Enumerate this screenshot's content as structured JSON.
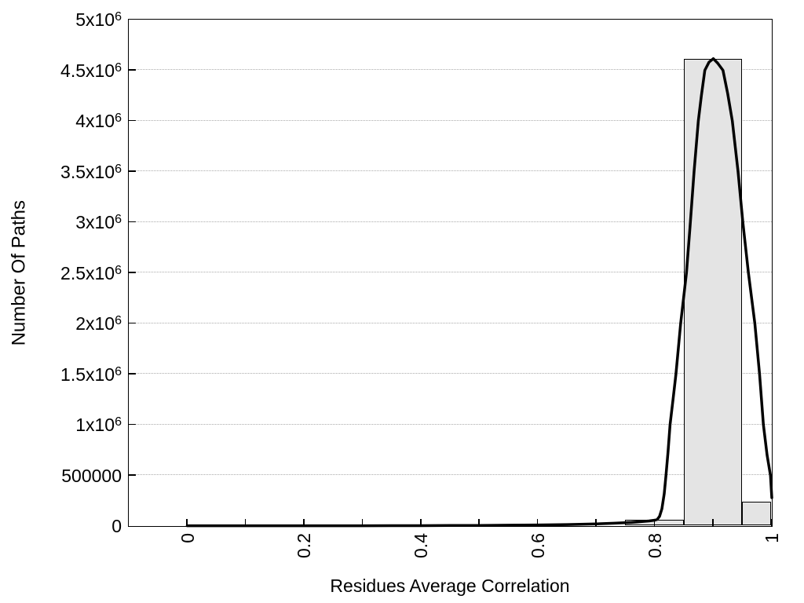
{
  "chart_data": {
    "type": "bar",
    "subtype": "histogram-with-fit-curve",
    "title": "",
    "xlabel": "Residues Average Correlation",
    "ylabel": "Number Of Paths",
    "xlim": [
      -0.1,
      1.0
    ],
    "ylim": [
      0,
      5000000
    ],
    "grid": "horizontal-dotted",
    "legend": "none",
    "colors": {
      "bar_fill": "#e4e4e4",
      "bar_border": "#000000",
      "curve": "#000000",
      "grid": "#ababab",
      "axis": "#000000",
      "background": "#ffffff"
    },
    "y_ticks": [
      {
        "value": 0,
        "label": "0",
        "exp": ""
      },
      {
        "value": 500000,
        "label": "500000",
        "exp": ""
      },
      {
        "value": 1000000,
        "label": "1x10",
        "exp": "6"
      },
      {
        "value": 1500000,
        "label": "1.5x10",
        "exp": "6"
      },
      {
        "value": 2000000,
        "label": "2x10",
        "exp": "6"
      },
      {
        "value": 2500000,
        "label": "2.5x10",
        "exp": "6"
      },
      {
        "value": 3000000,
        "label": "3x10",
        "exp": "6"
      },
      {
        "value": 3500000,
        "label": "3.5x10",
        "exp": "6"
      },
      {
        "value": 4000000,
        "label": "4x10",
        "exp": "6"
      },
      {
        "value": 4500000,
        "label": "4.5x10",
        "exp": "6"
      },
      {
        "value": 5000000,
        "label": "5x10",
        "exp": "6"
      }
    ],
    "x_ticks_major": [
      {
        "value": 0,
        "label": "0"
      },
      {
        "value": 0.2,
        "label": "0.2"
      },
      {
        "value": 0.4,
        "label": "0.4"
      },
      {
        "value": 0.6,
        "label": "0.6"
      },
      {
        "value": 0.8,
        "label": "0.8"
      },
      {
        "value": 1,
        "label": "1"
      }
    ],
    "x_ticks_minor": [
      0.1,
      0.3,
      0.5,
      0.7,
      0.9
    ],
    "bars": [
      {
        "x0": 0.75,
        "x1": 0.85,
        "value": 55000
      },
      {
        "x0": 0.85,
        "x1": 0.95,
        "value": 4610000
      },
      {
        "x0": 0.95,
        "x1": 1.0,
        "value": 240000
      }
    ],
    "curve": {
      "name": "fit-curve",
      "points": [
        [
          0.0,
          3000
        ],
        [
          0.05,
          3000
        ],
        [
          0.1,
          3000
        ],
        [
          0.15,
          3000
        ],
        [
          0.2,
          3000
        ],
        [
          0.25,
          3000
        ],
        [
          0.3,
          3200
        ],
        [
          0.35,
          3600
        ],
        [
          0.4,
          4200
        ],
        [
          0.45,
          5200
        ],
        [
          0.5,
          6500
        ],
        [
          0.55,
          8500
        ],
        [
          0.6,
          11000
        ],
        [
          0.65,
          15000
        ],
        [
          0.7,
          22000
        ],
        [
          0.73,
          28000
        ],
        [
          0.76,
          36000
        ],
        [
          0.79,
          50000
        ],
        [
          0.8,
          58000
        ],
        [
          0.804,
          66000
        ],
        [
          0.808,
          95000
        ],
        [
          0.812,
          170000
        ],
        [
          0.816,
          320000
        ],
        [
          0.819,
          500000
        ],
        [
          0.8225,
          730000
        ],
        [
          0.826,
          1000000
        ],
        [
          0.831,
          1250000
        ],
        [
          0.836,
          1500000
        ],
        [
          0.84,
          1750000
        ],
        [
          0.844,
          2000000
        ],
        [
          0.849,
          2250000
        ],
        [
          0.854,
          2500000
        ],
        [
          0.86,
          2950000
        ],
        [
          0.867,
          3500000
        ],
        [
          0.8743,
          4000000
        ],
        [
          0.8795,
          4250000
        ],
        [
          0.8855,
          4500000
        ],
        [
          0.8925,
          4580000
        ],
        [
          0.9,
          4615000
        ],
        [
          0.9075,
          4570000
        ],
        [
          0.9164,
          4500000
        ],
        [
          0.9245,
          4270000
        ],
        [
          0.9325,
          4000000
        ],
        [
          0.9423,
          3500000
        ],
        [
          0.9505,
          3000000
        ],
        [
          0.96,
          2500000
        ],
        [
          0.971,
          2000000
        ],
        [
          0.979,
          1500000
        ],
        [
          0.9856,
          1000000
        ],
        [
          0.992,
          700000
        ],
        [
          0.9977,
          500000
        ],
        [
          1.0,
          280000
        ]
      ]
    }
  }
}
